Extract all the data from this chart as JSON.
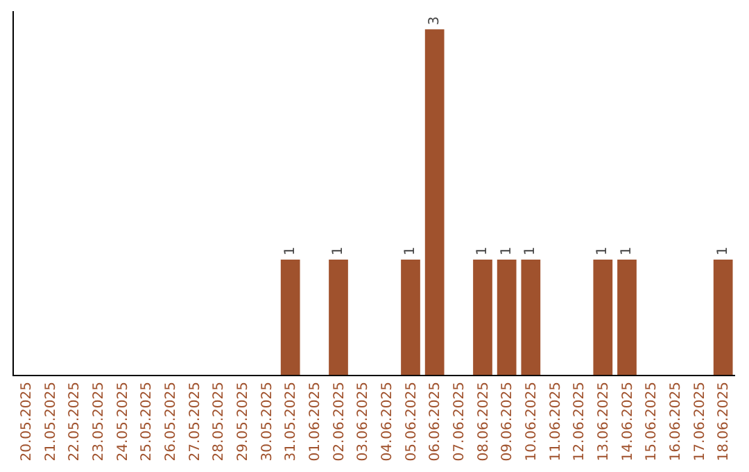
{
  "chart_data": {
    "type": "bar",
    "categories": [
      "20.05.2025",
      "21.05.2025",
      "22.05.2025",
      "23.05.2025",
      "24.05.2025",
      "25.05.2025",
      "26.05.2025",
      "27.05.2025",
      "28.05.2025",
      "29.05.2025",
      "30.05.2025",
      "31.05.2025",
      "01.06.2025",
      "02.06.2025",
      "03.06.2025",
      "04.06.2025",
      "05.06.2025",
      "06.06.2025",
      "07.06.2025",
      "08.06.2025",
      "09.06.2025",
      "10.06.2025",
      "11.06.2025",
      "12.06.2025",
      "13.06.2025",
      "14.06.2025",
      "15.06.2025",
      "16.06.2025",
      "17.06.2025",
      "18.06.2025"
    ],
    "values": [
      0,
      0,
      0,
      0,
      0,
      0,
      0,
      0,
      0,
      0,
      0,
      1,
      0,
      1,
      0,
      0,
      1,
      3,
      0,
      1,
      1,
      1,
      0,
      0,
      1,
      1,
      0,
      0,
      0,
      1
    ],
    "value_labels": [
      null,
      null,
      null,
      null,
      null,
      null,
      null,
      null,
      null,
      null,
      null,
      "1",
      null,
      "1",
      null,
      null,
      "1",
      "3",
      null,
      "1",
      "1",
      "1",
      null,
      null,
      "1",
      "1",
      null,
      null,
      null,
      "1"
    ],
    "color": "#a0522d",
    "tick_labels": "x"
  }
}
